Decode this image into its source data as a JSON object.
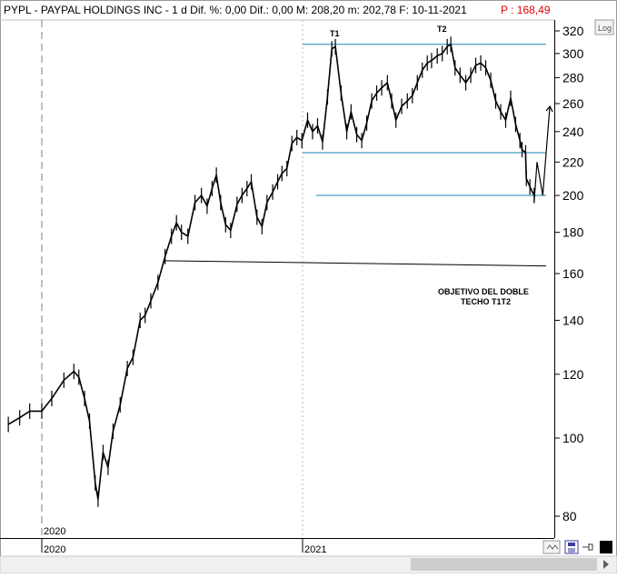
{
  "header": {
    "text": "PYPL - PAYPAL HOLDINGS INC -   1 d Dif. %: 0,00  Dif.: 0,00  M: 208,20  m: 202,78  F: 10-11-2021",
    "last_price": "P : 168,49",
    "log_button": "Log"
  },
  "colors": {
    "price": "#000000",
    "support_resistance": "#1a86b8",
    "projection": "#000000",
    "last_price": "#e00000",
    "background": "#ffffff"
  },
  "x_axis": {
    "label_2020_top": "2020",
    "label_2020": "2020",
    "label_2021": "2021"
  },
  "annotations": {
    "t1": "T1",
    "t2": "T2",
    "objective_line1": "OBJETIVO DEL DOBLE",
    "objective_line2": "TECHO T1T2"
  },
  "icons": [
    "scroll-icon",
    "save-icon",
    "pin-icon",
    "color-square-icon"
  ],
  "chart_data": {
    "type": "line",
    "title": "PYPL - PAYPAL HOLDINGS INC",
    "y_scale": "log",
    "ylim": [
      75,
      330
    ],
    "y_ticks": [
      80,
      100,
      120,
      140,
      160,
      180,
      200,
      220,
      240,
      260,
      280,
      300,
      320
    ],
    "x_range": [
      "2019-11",
      "2021-11"
    ],
    "series": [
      {
        "name": "PYPL",
        "points": [
          [
            "2019-11-15",
            104
          ],
          [
            "2019-12-01",
            106
          ],
          [
            "2019-12-15",
            108
          ],
          [
            "2020-01-01",
            108
          ],
          [
            "2020-01-15",
            112
          ],
          [
            "2020-02-01",
            118
          ],
          [
            "2020-02-15",
            121
          ],
          [
            "2020-02-22",
            119
          ],
          [
            "2020-03-01",
            112
          ],
          [
            "2020-03-08",
            105
          ],
          [
            "2020-03-16",
            88
          ],
          [
            "2020-03-20",
            84
          ],
          [
            "2020-03-27",
            96
          ],
          [
            "2020-04-03",
            92
          ],
          [
            "2020-04-10",
            102
          ],
          [
            "2020-04-20",
            110
          ],
          [
            "2020-04-30",
            122
          ],
          [
            "2020-05-08",
            126
          ],
          [
            "2020-05-18",
            140
          ],
          [
            "2020-05-25",
            142
          ],
          [
            "2020-06-02",
            148
          ],
          [
            "2020-06-12",
            156
          ],
          [
            "2020-06-22",
            168
          ],
          [
            "2020-07-01",
            178
          ],
          [
            "2020-07-08",
            185
          ],
          [
            "2020-07-15",
            180
          ],
          [
            "2020-07-24",
            178
          ],
          [
            "2020-08-03",
            196
          ],
          [
            "2020-08-12",
            200
          ],
          [
            "2020-08-20",
            194
          ],
          [
            "2020-08-27",
            204
          ],
          [
            "2020-09-02",
            212
          ],
          [
            "2020-09-08",
            196
          ],
          [
            "2020-09-15",
            184
          ],
          [
            "2020-09-22",
            181
          ],
          [
            "2020-10-01",
            195
          ],
          [
            "2020-10-08",
            200
          ],
          [
            "2020-10-15",
            204
          ],
          [
            "2020-10-21",
            208
          ],
          [
            "2020-10-29",
            188
          ],
          [
            "2020-11-05",
            183
          ],
          [
            "2020-11-12",
            196
          ],
          [
            "2020-11-20",
            202
          ],
          [
            "2020-11-27",
            208
          ],
          [
            "2020-12-03",
            213
          ],
          [
            "2020-12-10",
            216
          ],
          [
            "2020-12-17",
            232
          ],
          [
            "2020-12-24",
            236
          ],
          [
            "2020-12-31",
            234
          ],
          [
            "2021-01-08",
            248
          ],
          [
            "2021-01-15",
            240
          ],
          [
            "2021-01-22",
            244
          ],
          [
            "2021-01-29",
            233
          ],
          [
            "2021-02-05",
            265
          ],
          [
            "2021-02-11",
            304
          ],
          [
            "2021-02-16",
            306
          ],
          [
            "2021-02-24",
            268
          ],
          [
            "2021-03-04",
            240
          ],
          [
            "2021-03-10",
            254
          ],
          [
            "2021-03-18",
            238
          ],
          [
            "2021-03-25",
            234
          ],
          [
            "2021-04-01",
            246
          ],
          [
            "2021-04-08",
            262
          ],
          [
            "2021-04-15",
            268
          ],
          [
            "2021-04-22",
            272
          ],
          [
            "2021-04-30",
            276
          ],
          [
            "2021-05-06",
            262
          ],
          [
            "2021-05-12",
            248
          ],
          [
            "2021-05-20",
            258
          ],
          [
            "2021-05-28",
            262
          ],
          [
            "2021-06-04",
            266
          ],
          [
            "2021-06-11",
            276
          ],
          [
            "2021-06-18",
            286
          ],
          [
            "2021-06-25",
            292
          ],
          [
            "2021-07-01",
            294
          ],
          [
            "2021-07-09",
            298
          ],
          [
            "2021-07-16",
            300
          ],
          [
            "2021-07-23",
            306
          ],
          [
            "2021-07-28",
            308
          ],
          [
            "2021-08-03",
            288
          ],
          [
            "2021-08-10",
            282
          ],
          [
            "2021-08-18",
            276
          ],
          [
            "2021-08-25",
            282
          ],
          [
            "2021-09-01",
            290
          ],
          [
            "2021-09-08",
            292
          ],
          [
            "2021-09-15",
            288
          ],
          [
            "2021-09-22",
            278
          ],
          [
            "2021-09-29",
            262
          ],
          [
            "2021-10-06",
            254
          ],
          [
            "2021-10-13",
            248
          ],
          [
            "2021-10-20",
            264
          ],
          [
            "2021-10-27",
            245
          ],
          [
            "2021-11-02",
            234
          ],
          [
            "2021-11-05",
            228
          ],
          [
            "2021-11-10",
            226
          ],
          [
            "2021-11-11",
            210
          ],
          [
            "2021-11-16",
            205
          ],
          [
            "2021-11-22",
            200
          ]
        ]
      }
    ],
    "horizontal_lines": [
      {
        "name": "T1-T2 resistance",
        "value": 308
      },
      {
        "name": "neckline",
        "value": 226
      },
      {
        "name": "support",
        "value": 200
      },
      {
        "name": "objective",
        "value": 166
      }
    ],
    "projection": [
      [
        "2021-11-22",
        196
      ],
      [
        "2021-11-26",
        220
      ],
      [
        "2021-12-04",
        200
      ],
      [
        "2021-12-14",
        258
      ]
    ],
    "last_price": 168.49
  }
}
